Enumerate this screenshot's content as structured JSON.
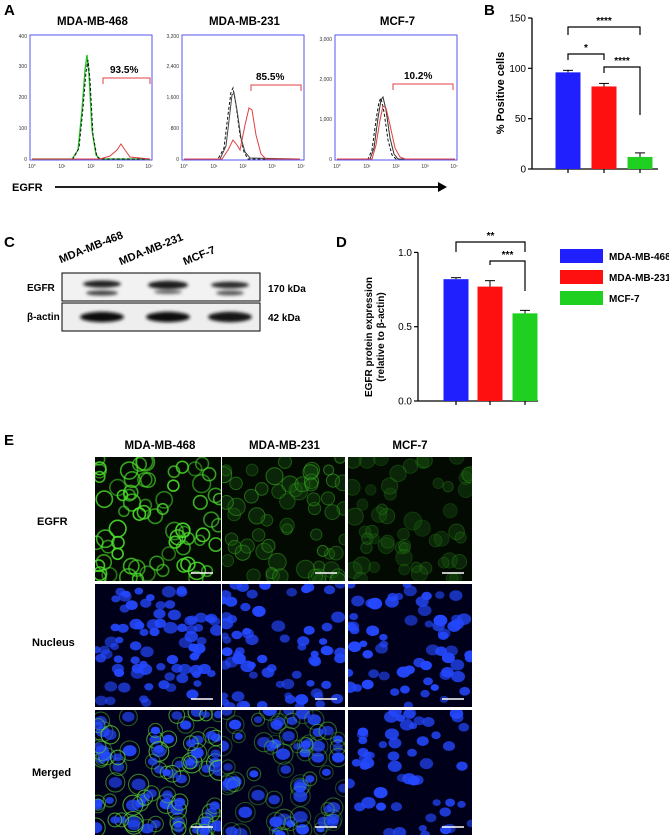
{
  "panels": {
    "A": "A",
    "B": "B",
    "C": "C",
    "D": "D",
    "E": "E"
  },
  "cell_lines": [
    "MDA-MB-468",
    "MDA-MB-231",
    "MCF-7"
  ],
  "colors": {
    "blue": "#2020ff",
    "red": "#ff1010",
    "green": "#20d020",
    "axis_blue": "#5555ee",
    "flow_red": "#e04040"
  },
  "panelA": {
    "axis_label": "EGFR",
    "plots": [
      {
        "title": "MDA-MB-468",
        "percent": "93.5%",
        "yticks": [
          "0",
          "100",
          "200",
          "300",
          "400"
        ]
      },
      {
        "title": "MDA-MB-231",
        "percent": "85.5%",
        "yticks": [
          "0",
          "800",
          "1,600",
          "2,400",
          "3,200"
        ]
      },
      {
        "title": "MCF-7",
        "percent": "10.2%",
        "yticks": [
          "0",
          "1,000",
          "2,000",
          "3,000"
        ]
      }
    ],
    "xticks": [
      "10°",
      "10¹",
      "10²",
      "10³",
      "10⁷"
    ]
  },
  "chart_data": [
    {
      "type": "bar",
      "panel": "B",
      "categories": [
        "MDA-MB-468",
        "MDA-MB-231",
        "MCF-7"
      ],
      "values": [
        96,
        82,
        12
      ],
      "errors": [
        2,
        3,
        4
      ],
      "ylabel": "% Positive cells",
      "ylim": [
        0,
        150
      ],
      "yticks": [
        "0",
        "50",
        "100",
        "150"
      ],
      "significance": [
        "*",
        "****",
        "****"
      ]
    },
    {
      "type": "bar",
      "panel": "D",
      "categories": [
        "MDA-MB-468",
        "MDA-MB-231",
        "MCF-7"
      ],
      "values": [
        0.82,
        0.77,
        0.59
      ],
      "errors": [
        0.01,
        0.04,
        0.02
      ],
      "ylabel": "EGFR protein expression (relative to β-actin)",
      "ylim": [
        0,
        1.05
      ],
      "yticks": [
        "0.0",
        "0.5",
        "1.0"
      ],
      "significance": [
        "***",
        "**"
      ],
      "legend": [
        "MDA-MB-468",
        "MDA-MB-231",
        "MCF-7"
      ]
    }
  ],
  "panelC": {
    "rows": [
      {
        "label": "EGFR",
        "kda": "170 kDa"
      },
      {
        "label": "β-actin",
        "kda": "42 kDa"
      }
    ]
  },
  "panelE": {
    "rows": [
      "EGFR",
      "Nucleus",
      "Merged"
    ]
  },
  "panelD_ylabel_lines": [
    "EGFR protein expression",
    "(relative to β-actin)"
  ]
}
